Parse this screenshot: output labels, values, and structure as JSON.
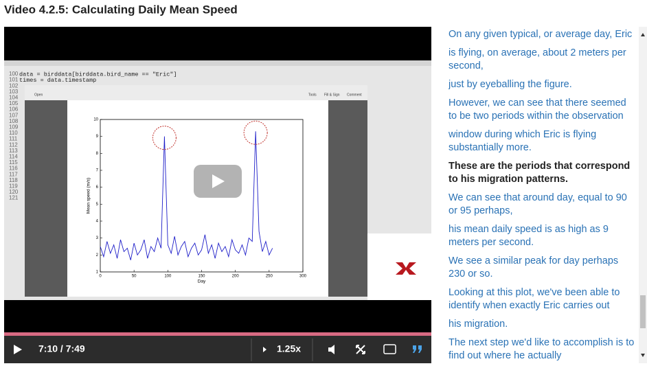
{
  "title": "Video 4.2.5: Calculating Daily Mean Speed",
  "video": {
    "ide": {
      "code_lines": [
        {
          "number": 100,
          "text": "data = birddata[birddata.bird_name == \"Eric\"]"
        },
        {
          "number": 101,
          "text": "times = data.timestamp"
        },
        {
          "number": 102
        },
        {
          "number": 103
        },
        {
          "number": 104
        },
        {
          "number": 105
        },
        {
          "number": 106
        },
        {
          "number": 107
        },
        {
          "number": 108
        },
        {
          "number": 109
        },
        {
          "number": 110
        },
        {
          "number": 111
        },
        {
          "number": 112
        },
        {
          "number": 113
        },
        {
          "number": 114
        },
        {
          "number": 115
        },
        {
          "number": 116
        },
        {
          "number": 117
        },
        {
          "number": 118
        },
        {
          "number": 119
        },
        {
          "number": 120
        },
        {
          "number": 121
        }
      ]
    },
    "pdf_toolbar": {
      "open": "Open",
      "tools": "Tools",
      "fill_sign": "Fill & Sign",
      "comment": "Comment"
    },
    "plot": {
      "type": "line",
      "x_label": "Day",
      "y_label": "Mean speed (m/s)",
      "color": "#1c1cc8",
      "x": [
        0,
        5,
        10,
        15,
        20,
        25,
        30,
        35,
        40,
        45,
        50,
        55,
        60,
        65,
        70,
        75,
        80,
        85,
        90,
        95,
        100,
        105,
        110,
        115,
        120,
        125,
        130,
        135,
        140,
        145,
        150,
        155,
        160,
        165,
        170,
        175,
        180,
        185,
        190,
        195,
        200,
        205,
        210,
        215,
        220,
        225,
        230,
        235,
        240,
        245,
        250,
        255
      ],
      "values": [
        2.5,
        1.9,
        2.8,
        2.1,
        2.6,
        1.8,
        2.9,
        2.2,
        2.4,
        1.7,
        2.7,
        2.0,
        2.3,
        2.9,
        1.8,
        2.5,
        2.2,
        3.0,
        2.4,
        9.0,
        2.6,
        2.1,
        3.1,
        2.0,
        2.5,
        2.8,
        1.9,
        2.4,
        2.7,
        2.0,
        2.3,
        3.2,
        2.1,
        2.6,
        1.8,
        2.7,
        2.2,
        2.5,
        1.9,
        2.9,
        2.3,
        2.1,
        2.6,
        2.0,
        3.0,
        2.8,
        9.3,
        3.4,
        2.2,
        2.8,
        2.0,
        2.4
      ],
      "xlim": [
        0,
        300
      ],
      "ylim": [
        1,
        10
      ],
      "xticks": [
        0,
        50,
        100,
        150,
        200,
        250,
        300
      ],
      "yticks": [
        1,
        2,
        3,
        4,
        5,
        6,
        7,
        8,
        9,
        10
      ]
    },
    "controls": {
      "time": "7:10 / 7:49",
      "speed": "1.25x"
    }
  },
  "transcript": [
    {
      "text": "On any given typical, or average day, Eric"
    },
    {
      "text": "is flying, on average, about 2 meters per second,"
    },
    {
      "text": "just by eyeballing the figure."
    },
    {
      "text": "However, we can see that there seemed to be two periods within the observation"
    },
    {
      "text": "window during which Eric is flying substantially more."
    },
    {
      "text": "These are the periods that correspond to his migration patterns.",
      "bold": true
    },
    {
      "text": "We can see that around day, equal to 90 or 95 perhaps,"
    },
    {
      "text": "his mean daily speed is as high as 9 meters per second."
    },
    {
      "text": "We see a similar peak for day perhaps 230 or so."
    },
    {
      "text": "Looking at this plot, we've been able to identify when exactly Eric carries out"
    },
    {
      "text": "his migration."
    },
    {
      "text": "The next step we'd like to accomplish is to find out where he actually"
    }
  ]
}
